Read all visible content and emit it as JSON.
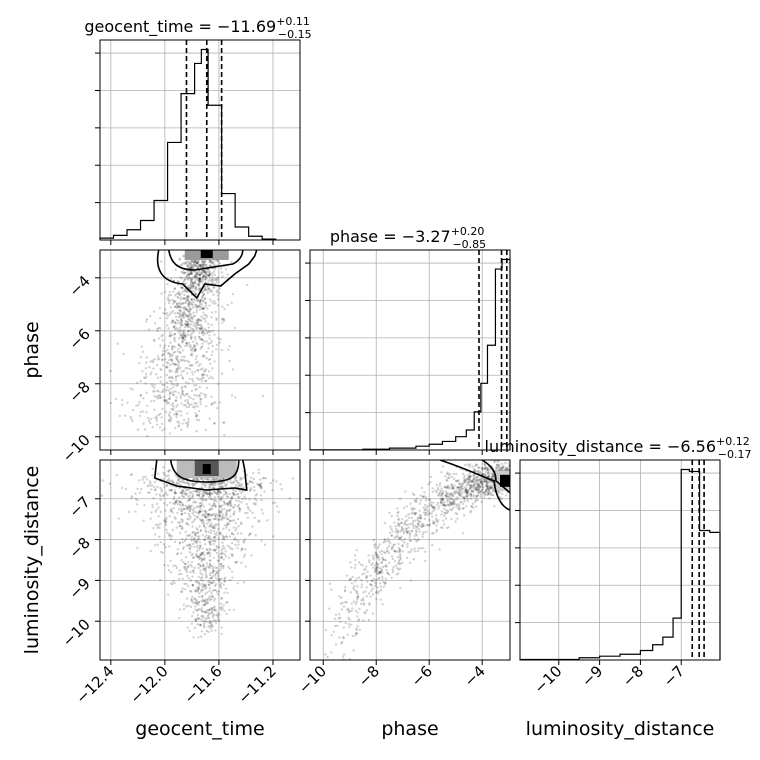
{
  "chart_data": {
    "type": "corner",
    "parameters": [
      {
        "name": "geocent_time",
        "label": "geocent_time",
        "title_label": "geocent_time",
        "median": -11.69,
        "title_value": "−11.69",
        "plus": "+0.11",
        "minus": "−0.15",
        "quantiles": [
          -11.84,
          -11.69,
          -11.58
        ],
        "range": [
          -12.48,
          -11.0
        ],
        "ticks": [
          -12.4,
          -12.0,
          -11.6,
          -11.2
        ],
        "tick_labels": [
          "−12.4",
          "−12.0",
          "−11.6",
          "−11.2"
        ],
        "hist_edges": [
          -12.48,
          -12.38,
          -12.28,
          -12.18,
          -12.08,
          -11.98,
          -11.88,
          -11.78,
          -11.73,
          -11.68,
          -11.58,
          -11.48,
          -11.38,
          -11.28,
          -11.18
        ],
        "hist_counts": [
          0.4,
          1.0,
          2.2,
          4.2,
          8.5,
          21.0,
          31.5,
          38.0,
          41.0,
          29.0,
          10.0,
          2.8,
          0.8,
          0.2
        ]
      },
      {
        "name": "phase",
        "label": "phase",
        "title_label": "phase",
        "median": -3.27,
        "title_value": "−3.27",
        "plus": "+0.20",
        "minus": "−0.85",
        "quantiles": [
          -4.12,
          -3.27,
          -3.07
        ],
        "range": [
          -10.5,
          -2.95
        ],
        "ticks": [
          -10,
          -8,
          -6,
          -4
        ],
        "tick_labels": [
          "−10",
          "−8",
          "−6",
          "−4"
        ],
        "hist_edges": [
          -10.5,
          -8.5,
          -7.5,
          -6.5,
          -6.0,
          -5.5,
          -5.0,
          -4.6,
          -4.3,
          -4.05,
          -3.8,
          -3.5,
          -3.25,
          -2.95
        ],
        "hist_counts": [
          0.1,
          0.4,
          1.0,
          2.0,
          3.0,
          4.5,
          7.0,
          10.5,
          20.0,
          35.0,
          55.0,
          95.0,
          100.0
        ]
      },
      {
        "name": "luminosity_distance",
        "label": "luminosity_distance",
        "title_label": "luminosity_distance",
        "median": -6.56,
        "title_value": "−6.56",
        "plus": "+0.12",
        "minus": "−0.17",
        "quantiles": [
          -6.73,
          -6.56,
          -6.44
        ],
        "range": [
          -10.95,
          -6.05
        ],
        "ticks": [
          -10,
          -9,
          -8,
          -7
        ],
        "tick_labels": [
          "−10",
          "−9",
          "−8",
          "−7"
        ],
        "hist_edges": [
          -10.95,
          -9.5,
          -9.0,
          -8.5,
          -8.0,
          -7.7,
          -7.45,
          -7.2,
          -7.0,
          -6.8,
          -6.55,
          -6.3,
          -6.05
        ],
        "hist_counts": [
          0.3,
          1.2,
          2.0,
          3.0,
          5.0,
          8.0,
          12.0,
          22.0,
          100.0,
          99.0,
          68.0,
          67.0
        ]
      }
    ],
    "pairs": [
      {
        "x": "geocent_time",
        "y": "phase"
      },
      {
        "x": "geocent_time",
        "y": "luminosity_distance"
      },
      {
        "x": "phase",
        "y": "luminosity_distance"
      }
    ],
    "grid": true,
    "contour_levels": 2
  }
}
